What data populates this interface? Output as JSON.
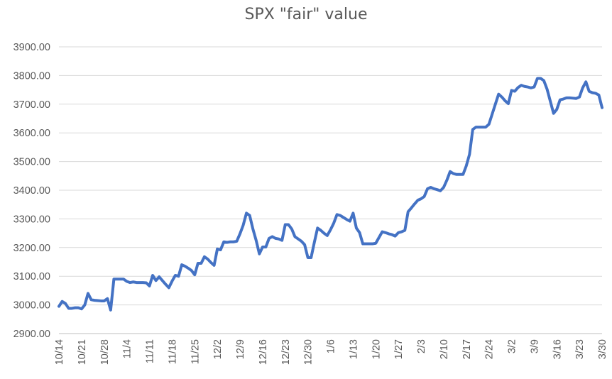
{
  "chart_data": {
    "type": "line",
    "title": "SPX \"fair\" value",
    "xlabel": "",
    "ylabel": "",
    "ylim": [
      2900,
      3900
    ],
    "y_ticks": [
      "2900.00",
      "3000.00",
      "3100.00",
      "3200.00",
      "3300.00",
      "3400.00",
      "3500.00",
      "3600.00",
      "3700.00",
      "3800.00",
      "3900.00"
    ],
    "x_ticks": [
      "10/14",
      "10/21",
      "10/28",
      "11/4",
      "11/11",
      "11/18",
      "11/25",
      "12/2",
      "12/9",
      "12/16",
      "12/23",
      "12/30",
      "1/6",
      "1/13",
      "1/20",
      "1/27",
      "2/3",
      "2/10",
      "2/17",
      "2/24",
      "3/2",
      "3/9",
      "3/16",
      "3/23",
      "3/30"
    ],
    "grid": true,
    "legend": "none",
    "series": [
      {
        "color": "#4472C4",
        "points": [
          [
            0,
            2995
          ],
          [
            0.5,
            3012
          ],
          [
            1,
            3005
          ],
          [
            1.5,
            2988
          ],
          [
            2,
            2988
          ],
          [
            2.5,
            2990
          ],
          [
            3,
            2990
          ],
          [
            3.5,
            2986
          ],
          [
            4,
            3000
          ],
          [
            4.5,
            3040
          ],
          [
            5,
            3018
          ],
          [
            5.5,
            3016
          ],
          [
            6,
            3015
          ],
          [
            6.5,
            3014
          ],
          [
            7,
            3014
          ],
          [
            7.5,
            3022
          ],
          [
            8,
            2982
          ],
          [
            8.5,
            3090
          ],
          [
            9,
            3090
          ],
          [
            9.5,
            3090
          ],
          [
            10,
            3090
          ],
          [
            10.5,
            3082
          ],
          [
            11,
            3078
          ],
          [
            11.5,
            3080
          ],
          [
            12,
            3078
          ],
          [
            12.5,
            3078
          ],
          [
            13,
            3078
          ],
          [
            13.5,
            3077
          ],
          [
            14,
            3066
          ],
          [
            14.5,
            3103
          ],
          [
            15,
            3085
          ],
          [
            15.5,
            3098
          ],
          [
            16,
            3085
          ],
          [
            16.5,
            3072
          ],
          [
            17,
            3060
          ],
          [
            17.5,
            3083
          ],
          [
            18,
            3103
          ],
          [
            18.5,
            3100
          ],
          [
            19,
            3140
          ],
          [
            19.5,
            3135
          ],
          [
            20,
            3128
          ],
          [
            20.5,
            3120
          ],
          [
            21,
            3105
          ],
          [
            21.5,
            3145
          ],
          [
            22,
            3145
          ],
          [
            22.5,
            3168
          ],
          [
            23,
            3160
          ],
          [
            23.5,
            3148
          ],
          [
            24,
            3138
          ],
          [
            24.5,
            3195
          ],
          [
            25,
            3192
          ],
          [
            25.5,
            3220
          ],
          [
            26,
            3218
          ],
          [
            26.5,
            3220
          ],
          [
            27,
            3220
          ],
          [
            27.5,
            3222
          ],
          [
            28,
            3248
          ],
          [
            28.5,
            3278
          ],
          [
            29,
            3320
          ],
          [
            29.5,
            3312
          ],
          [
            30,
            3265
          ],
          [
            30.5,
            3225
          ],
          [
            31,
            3178
          ],
          [
            31.5,
            3202
          ],
          [
            32,
            3202
          ],
          [
            32.5,
            3232
          ],
          [
            33,
            3238
          ],
          [
            33.5,
            3232
          ],
          [
            34,
            3230
          ],
          [
            34.5,
            3225
          ],
          [
            35,
            3280
          ],
          [
            35.5,
            3280
          ],
          [
            36,
            3265
          ],
          [
            36.5,
            3238
          ],
          [
            37,
            3230
          ],
          [
            37.5,
            3222
          ],
          [
            38,
            3210
          ],
          [
            38.5,
            3165
          ],
          [
            39,
            3165
          ],
          [
            39.5,
            3218
          ],
          [
            40,
            3268
          ],
          [
            40.5,
            3260
          ],
          [
            41,
            3250
          ],
          [
            41.5,
            3242
          ],
          [
            42,
            3262
          ],
          [
            42.5,
            3285
          ],
          [
            43,
            3315
          ],
          [
            43.5,
            3312
          ],
          [
            44,
            3305
          ],
          [
            44.5,
            3298
          ],
          [
            45,
            3292
          ],
          [
            45.5,
            3320
          ],
          [
            46,
            3268
          ],
          [
            46.5,
            3252
          ],
          [
            47,
            3213
          ],
          [
            47.5,
            3213
          ],
          [
            48,
            3213
          ],
          [
            48.5,
            3213
          ],
          [
            49,
            3215
          ],
          [
            49.5,
            3235
          ],
          [
            50,
            3255
          ],
          [
            50.5,
            3252
          ],
          [
            51,
            3248
          ],
          [
            51.5,
            3245
          ],
          [
            52,
            3240
          ],
          [
            52.5,
            3252
          ],
          [
            53,
            3255
          ],
          [
            53.5,
            3260
          ],
          [
            54,
            3325
          ],
          [
            54.5,
            3338
          ],
          [
            55,
            3352
          ],
          [
            55.5,
            3365
          ],
          [
            56,
            3370
          ],
          [
            56.5,
            3378
          ],
          [
            57,
            3405
          ],
          [
            57.5,
            3410
          ],
          [
            58,
            3405
          ],
          [
            58.5,
            3402
          ],
          [
            59,
            3398
          ],
          [
            59.5,
            3410
          ],
          [
            60,
            3435
          ],
          [
            60.5,
            3465
          ],
          [
            61,
            3458
          ],
          [
            61.5,
            3455
          ],
          [
            62,
            3455
          ],
          [
            62.5,
            3455
          ],
          [
            63,
            3485
          ],
          [
            63.5,
            3525
          ],
          [
            64,
            3612
          ],
          [
            64.5,
            3620
          ],
          [
            65,
            3620
          ],
          [
            65.5,
            3620
          ],
          [
            66,
            3620
          ],
          [
            66.5,
            3630
          ],
          [
            67,
            3665
          ],
          [
            67.5,
            3700
          ],
          [
            68,
            3735
          ],
          [
            68.5,
            3725
          ],
          [
            69,
            3712
          ],
          [
            69.5,
            3702
          ],
          [
            70,
            3748
          ],
          [
            70.5,
            3745
          ],
          [
            71,
            3758
          ],
          [
            71.5,
            3766
          ],
          [
            72,
            3762
          ],
          [
            72.5,
            3760
          ],
          [
            73,
            3757
          ],
          [
            73.5,
            3760
          ],
          [
            74,
            3790
          ],
          [
            74.5,
            3790
          ],
          [
            75,
            3782
          ],
          [
            75.5,
            3752
          ],
          [
            76,
            3710
          ],
          [
            76.5,
            3668
          ],
          [
            77,
            3682
          ],
          [
            77.5,
            3715
          ],
          [
            78,
            3718
          ],
          [
            78.5,
            3722
          ],
          [
            79,
            3722
          ],
          [
            79.5,
            3721
          ],
          [
            80,
            3720
          ],
          [
            80.5,
            3725
          ],
          [
            81,
            3757
          ],
          [
            81.5,
            3778
          ],
          [
            82,
            3745
          ],
          [
            82.5,
            3740
          ],
          [
            83,
            3738
          ],
          [
            83.5,
            3732
          ],
          [
            84,
            3688
          ]
        ]
      }
    ]
  }
}
